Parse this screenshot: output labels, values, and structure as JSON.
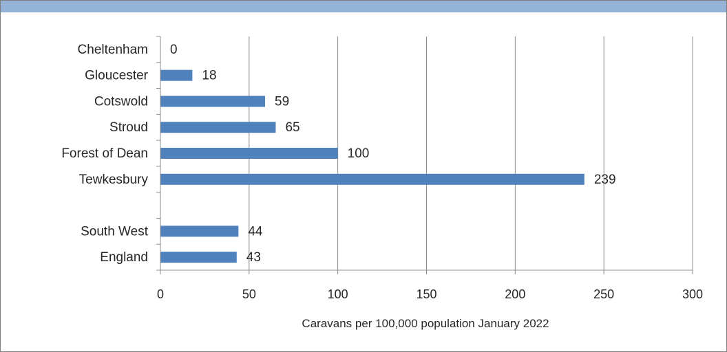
{
  "chart_data": {
    "type": "bar",
    "orientation": "horizontal",
    "categories": [
      "Cheltenham",
      "Gloucester",
      "Cotswold",
      "Stroud",
      "Forest of Dean",
      "Tewkesbury",
      "",
      "South West",
      "England"
    ],
    "values": [
      0,
      18,
      59,
      65,
      100,
      239,
      null,
      44,
      43
    ],
    "data_labels": [
      "0",
      "18",
      "59",
      "65",
      "100",
      "239",
      "",
      "44",
      "43"
    ],
    "xlabel": "Caravans per 100,000 population January 2022",
    "ylabel": "",
    "xlim": [
      0,
      300
    ],
    "xticks": [
      0,
      50,
      100,
      150,
      200,
      250,
      300
    ],
    "grid": "vertical",
    "legend": "none",
    "bar_color": "#4f81bd",
    "header_color": "#95b3d7"
  }
}
